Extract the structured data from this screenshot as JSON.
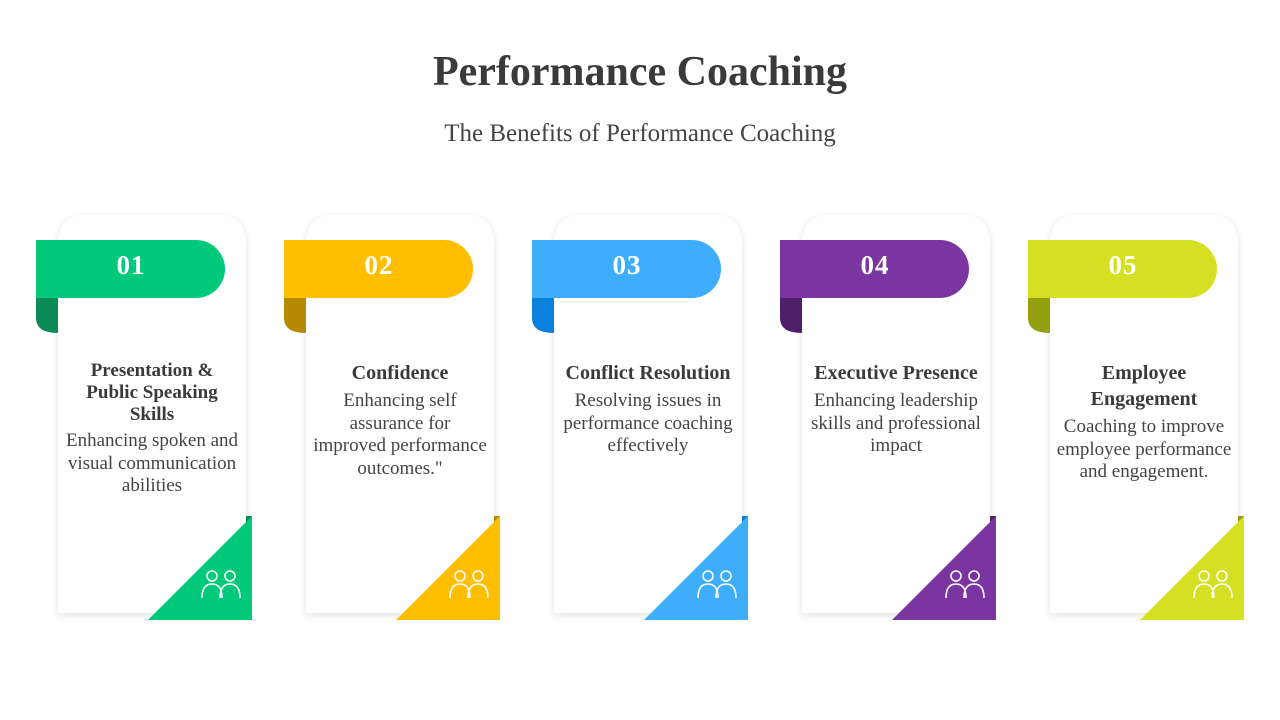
{
  "header": {
    "title": "Performance Coaching",
    "subtitle": "The Benefits of Performance Coaching"
  },
  "cards": [
    {
      "number": "01",
      "title": "Presentation & Public Speaking Skills",
      "description": "Enhancing spoken and visual communication abilities"
    },
    {
      "number": "02",
      "title": "Confidence",
      "description": "Enhancing self assurance for improved performance outcomes.\""
    },
    {
      "number": "03",
      "title": "Conflict Resolution",
      "description": "Resolving issues in performance coaching effectively"
    },
    {
      "number": "04",
      "title": "Executive Presence",
      "description": "Enhancing leadership skills and professional impact"
    },
    {
      "number": "05",
      "title": "Employee Engagement",
      "description": "Coaching to improve employee performance and engagement."
    }
  ]
}
